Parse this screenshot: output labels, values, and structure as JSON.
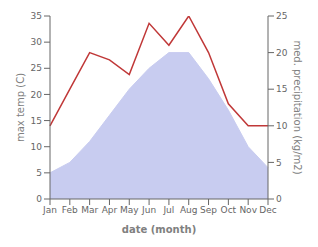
{
  "chart_data": {
    "type": "line",
    "categories": [
      "Jan",
      "Feb",
      "Mar",
      "Apr",
      "May",
      "Jun",
      "Jul",
      "Aug",
      "Sep",
      "Oct",
      "Nov",
      "Dec"
    ],
    "series": [
      {
        "name": "max temp",
        "type": "area",
        "color": "#c8ccf0",
        "axis": "y",
        "values": [
          5,
          7,
          11,
          16,
          21,
          25,
          28,
          28,
          23,
          17,
          10,
          6
        ]
      },
      {
        "name": "precipitation",
        "type": "line",
        "color": "#c03838",
        "axis": "y2",
        "values": [
          10,
          15,
          20,
          19,
          17,
          24,
          21,
          25,
          20,
          13,
          10,
          10
        ]
      }
    ],
    "xlabel": "date (month)",
    "ylabel": "max temp (C)",
    "y2label": "med. precipitation (kg/m2)",
    "ylim": [
      0,
      35
    ],
    "yticks": [
      0,
      5,
      10,
      15,
      20,
      25,
      30,
      35
    ],
    "y2lim": [
      0,
      25
    ],
    "y2ticks": [
      0,
      5,
      10,
      15,
      20,
      25
    ],
    "grid": false
  }
}
